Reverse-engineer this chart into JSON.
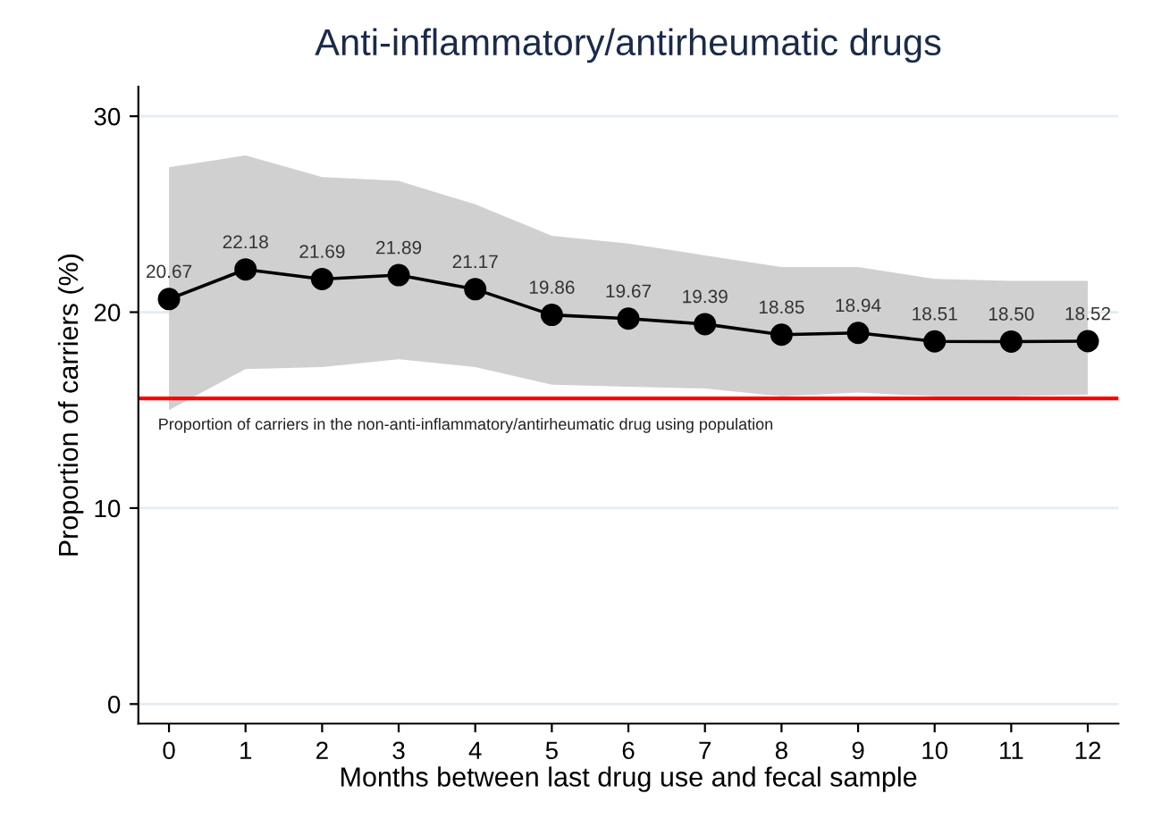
{
  "chart_data": {
    "type": "line",
    "title": "Anti-inflammatory/antirheumatic drugs",
    "xlabel": "Months between last drug use and fecal sample",
    "ylabel": "Proportion of carriers (%)",
    "x": [
      0,
      1,
      2,
      3,
      4,
      5,
      6,
      7,
      8,
      9,
      10,
      11,
      12
    ],
    "series": [
      {
        "color": "#000000",
        "values": [
          20.67,
          22.18,
          21.69,
          21.89,
          21.17,
          19.86,
          19.67,
          19.39,
          18.85,
          18.94,
          18.51,
          18.5,
          18.52
        ],
        "value_labels": [
          "20.67",
          "22.18",
          "21.69",
          "21.89",
          "21.17",
          "19.86",
          "19.67",
          "19.39",
          "18.85",
          "18.94",
          "18.51",
          "18.50",
          "18.52"
        ],
        "lower": [
          15.0,
          17.1,
          17.2,
          17.6,
          17.2,
          16.3,
          16.2,
          16.1,
          15.7,
          15.9,
          15.7,
          15.7,
          15.8
        ],
        "upper": [
          27.4,
          28.0,
          26.9,
          26.7,
          25.5,
          23.9,
          23.5,
          22.9,
          22.3,
          22.3,
          21.7,
          21.6,
          21.6
        ]
      }
    ],
    "marker": "circle",
    "line_style": "solid",
    "xlim": [
      -0.4,
      12.4
    ],
    "xticks": [
      0,
      1,
      2,
      3,
      4,
      5,
      6,
      7,
      8,
      9,
      10,
      11,
      12
    ],
    "ylim": [
      -1,
      31.5
    ],
    "yticks": [
      0,
      10,
      20,
      30
    ],
    "grid": "y",
    "legend": false,
    "ref_lines": [
      {
        "axis": "y",
        "value": 15.6,
        "label": "Proportion of carriers in the non-anti-inflammatory/antirheumatic drug using population",
        "color": "#ff0000"
      }
    ]
  }
}
